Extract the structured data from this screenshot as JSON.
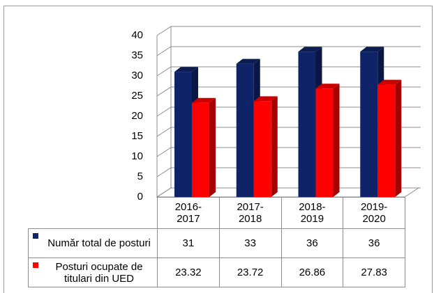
{
  "chart_data": {
    "type": "bar3d",
    "categories": [
      "2016-2017",
      "2017-2018",
      "2018-2019",
      "2019-2020"
    ],
    "series": [
      {
        "name": "Număr total de posturi",
        "color": "#0f2468",
        "values": [
          31,
          33,
          36,
          36
        ]
      },
      {
        "name": "Posturi ocupate de titulari din UED",
        "color": "#ff0000",
        "values": [
          23.32,
          23.72,
          26.86,
          27.83
        ]
      }
    ],
    "ylim": [
      0,
      40
    ],
    "yticks": [
      0,
      5,
      10,
      15,
      20,
      25,
      30,
      35,
      40
    ],
    "grid": true,
    "data_table": true
  }
}
